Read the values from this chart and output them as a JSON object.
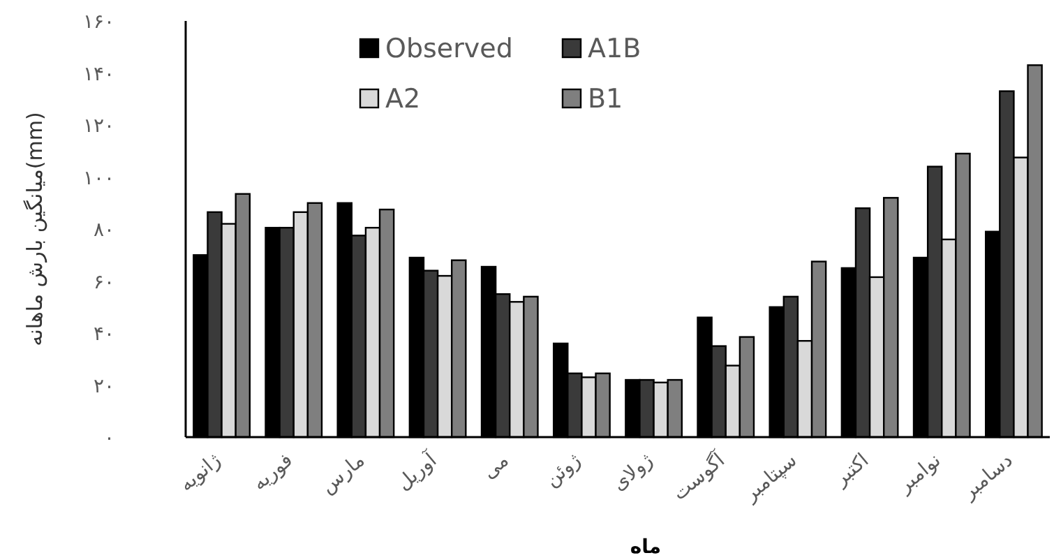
{
  "chart_data": {
    "type": "bar",
    "xlabel": "ماه",
    "ylabel": "میانگین بارش ماهانه(mm)",
    "categories": [
      "ژانویه",
      "فوریه",
      "مارس",
      "آوریل",
      "می",
      "ژوئن",
      "ژولای",
      "آگوست",
      "سپتامبر",
      "اکتبر",
      "نوامبر",
      "دسامبر"
    ],
    "series": [
      {
        "name": "Observed",
        "color": "#000000",
        "values": [
          70,
          80.5,
          90,
          69,
          65.5,
          36,
          22,
          46,
          50,
          65,
          69,
          79
        ]
      },
      {
        "name": "A1B",
        "color": "#3a3a3a",
        "values": [
          86.5,
          80.5,
          77.5,
          64,
          55,
          24.5,
          22,
          35,
          54,
          88,
          104,
          133
        ]
      },
      {
        "name": "A2",
        "color": "#d9d9d9",
        "values": [
          82,
          86.5,
          80.5,
          62,
          52,
          23,
          21,
          27.5,
          37,
          61.5,
          76,
          107.5
        ]
      },
      {
        "name": "B1",
        "color": "#7f7f7f",
        "values": [
          93.5,
          90,
          87.5,
          68,
          54,
          24.5,
          22,
          38.5,
          67.5,
          92,
          109,
          143
        ]
      }
    ],
    "ylim": [
      0,
      160
    ],
    "yticks": [
      {
        "value": 0,
        "label": "۰"
      },
      {
        "value": 20,
        "label": "۲۰"
      },
      {
        "value": 40,
        "label": "۴۰"
      },
      {
        "value": 60,
        "label": "۶۰"
      },
      {
        "value": 80,
        "label": "۸۰"
      },
      {
        "value": 100,
        "label": "۱۰۰"
      },
      {
        "value": 120,
        "label": "۱۲۰"
      },
      {
        "value": 140,
        "label": "۱۴۰"
      },
      {
        "value": 160,
        "label": "۱۶۰"
      }
    ],
    "legend": "top"
  }
}
